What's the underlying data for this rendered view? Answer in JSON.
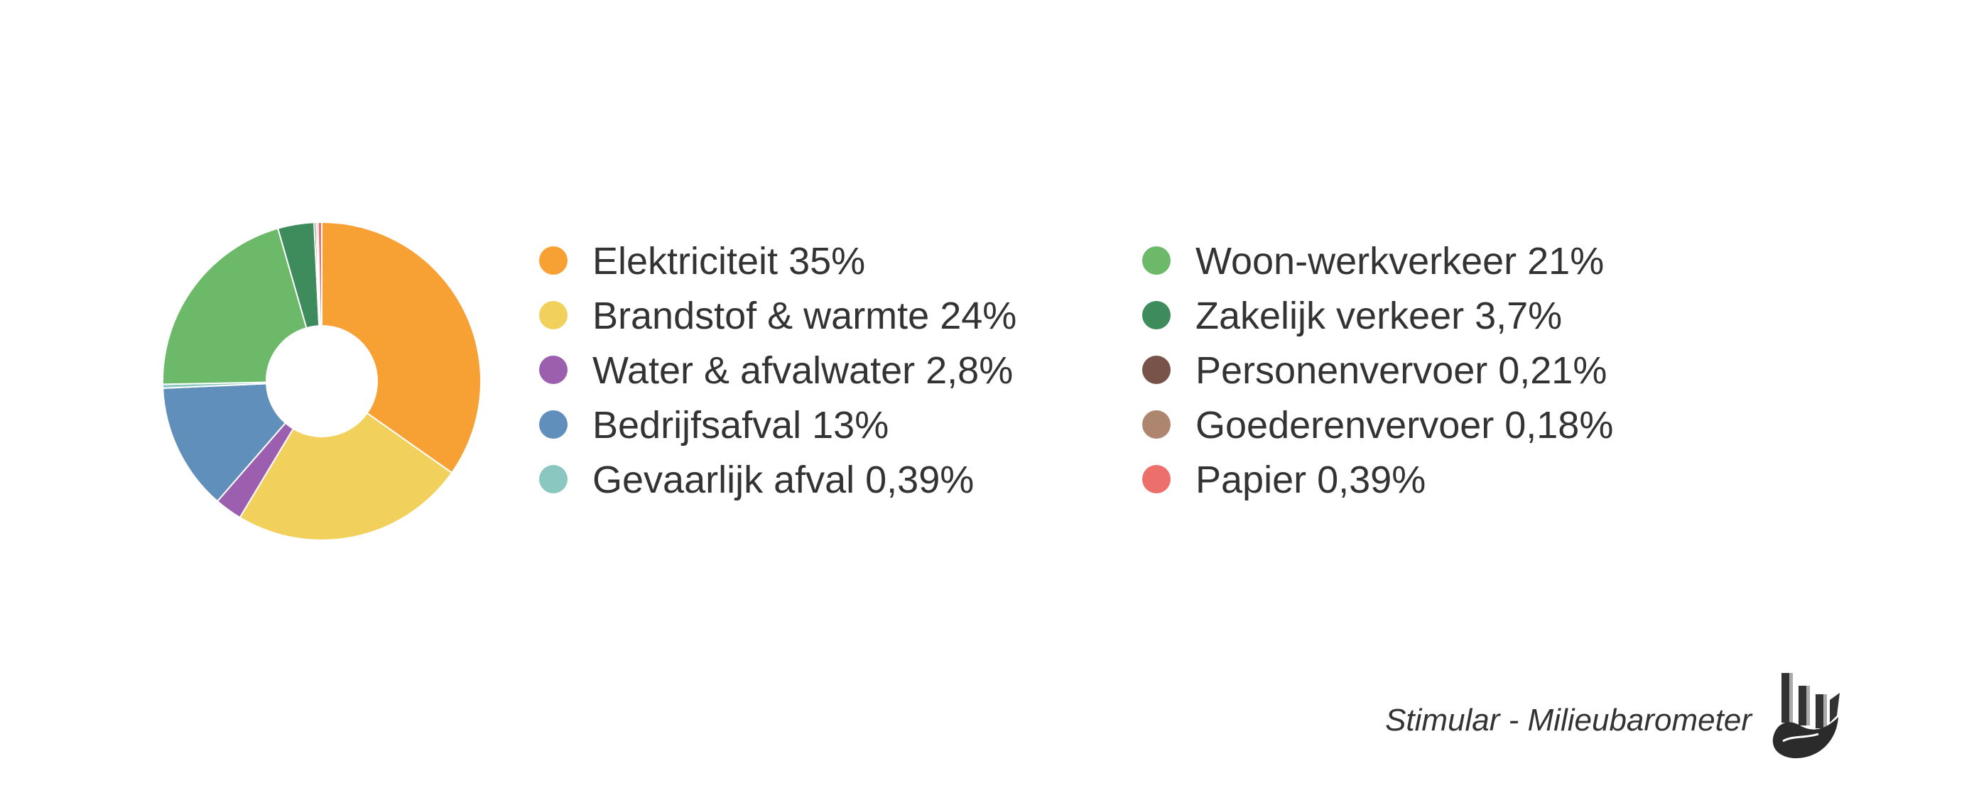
{
  "chart_data": {
    "type": "pie",
    "donut": true,
    "title": "",
    "legend_placement": "right",
    "legend_columns": 2,
    "slices": [
      {
        "label": "Elektriciteit",
        "value_label": "35%",
        "value": 35,
        "color": "#f7a134"
      },
      {
        "label": "Brandstof & warmte",
        "value_label": "24%",
        "value": 24,
        "color": "#f1d15b"
      },
      {
        "label": "Water & afvalwater",
        "value_label": "2,8%",
        "value": 2.8,
        "color": "#9c5fb0"
      },
      {
        "label": "Bedrijfsafval",
        "value_label": "13%",
        "value": 13,
        "color": "#5f8fba"
      },
      {
        "label": "Gevaarlijk afval",
        "value_label": "0,39%",
        "value": 0.39,
        "color": "#8ac7c1"
      },
      {
        "label": "Woon-werkverkeer",
        "value_label": "21%",
        "value": 21,
        "color": "#6cb96a"
      },
      {
        "label": "Zakelijk verkeer",
        "value_label": "3,7%",
        "value": 3.7,
        "color": "#3e8b5c"
      },
      {
        "label": "Personenvervoer",
        "value_label": "0,21%",
        "value": 0.21,
        "color": "#785349"
      },
      {
        "label": "Goederenvervoer",
        "value_label": "0,18%",
        "value": 0.18,
        "color": "#ae8670"
      },
      {
        "label": "Papier",
        "value_label": "0,39%",
        "value": 0.39,
        "color": "#ed6f6b"
      }
    ]
  },
  "footer": {
    "source": "Stimular - Milieubarometer"
  },
  "logo": {
    "icon": "milieubarometer-logo-icon"
  }
}
